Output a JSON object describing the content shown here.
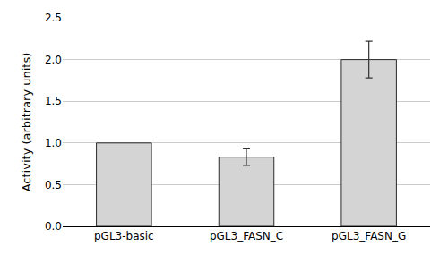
{
  "chart_data": {
    "type": "bar",
    "categories": [
      "pGL3-basic",
      "pGL3_FASN_C",
      "pGL3_FASN_G"
    ],
    "values": [
      1.0,
      0.83,
      2.0
    ],
    "errors": [
      null,
      0.1,
      0.22
    ],
    "color": "#d4d4d4",
    "ylabel": "Activity (arbitrary units)",
    "ylim": [
      0,
      2.5
    ],
    "yticks": [
      {
        "value": 0,
        "label": "0.0"
      },
      0.5,
      {
        "value": 1,
        "label": "1.0"
      },
      1.5,
      {
        "value": 2,
        "label": "2.0"
      },
      2.5
    ],
    "grid": true
  }
}
